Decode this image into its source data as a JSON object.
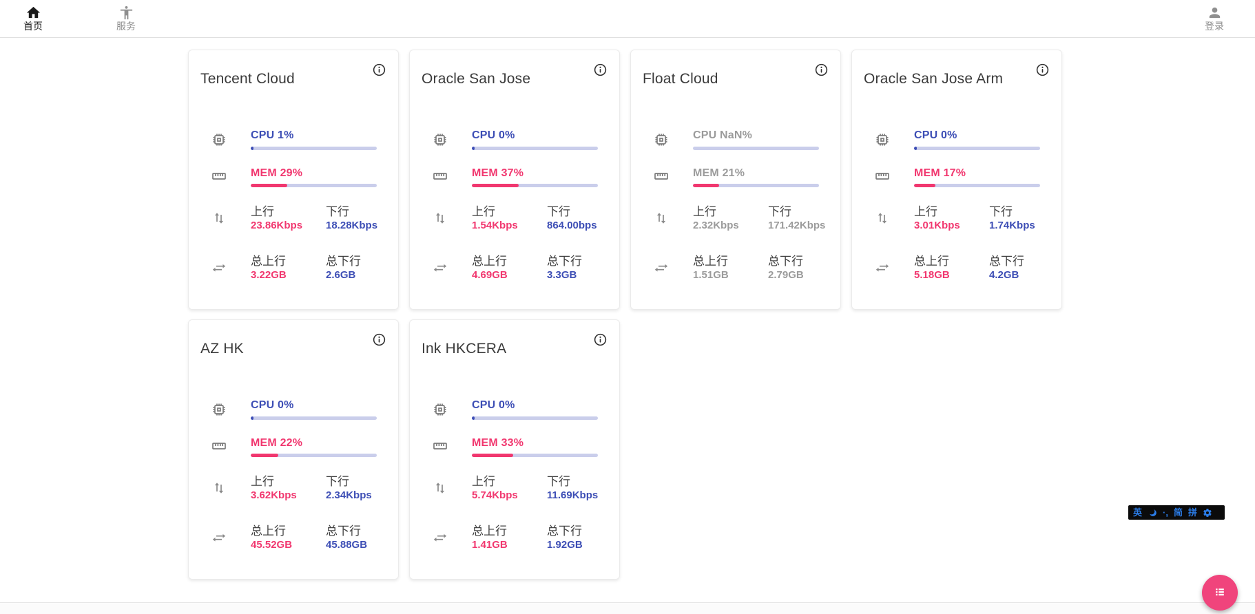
{
  "nav": {
    "home": {
      "label": "首页"
    },
    "services": {
      "label": "服务"
    },
    "login": {
      "label": "登录"
    }
  },
  "labels": {
    "up": "上行",
    "down": "下行",
    "total_up": "总上行",
    "total_down": "总下行"
  },
  "servers": [
    {
      "name": "Tencent Cloud",
      "cpu_label": "CPU 1%",
      "cpu_pct": 1,
      "mem_label": "MEM 29%",
      "mem_pct": 29,
      "up": "23.86Kbps",
      "down": "18.28Kbps",
      "total_up": "3.22GB",
      "total_down": "2.6GB",
      "stale": false
    },
    {
      "name": "Oracle San Jose",
      "cpu_label": "CPU 0%",
      "cpu_pct": 0,
      "mem_label": "MEM 37%",
      "mem_pct": 37,
      "up": "1.54Kbps",
      "down": "864.00bps",
      "total_up": "4.69GB",
      "total_down": "3.3GB",
      "stale": false
    },
    {
      "name": "Float Cloud",
      "cpu_label": "CPU NaN%",
      "cpu_pct": null,
      "mem_label": "MEM 21%",
      "mem_pct": 21,
      "up": "2.32Kbps",
      "down": "171.42Kbps",
      "total_up": "1.51GB",
      "total_down": "2.79GB",
      "stale": true
    },
    {
      "name": "Oracle San Jose Arm",
      "cpu_label": "CPU 0%",
      "cpu_pct": 0,
      "mem_label": "MEM 17%",
      "mem_pct": 17,
      "up": "3.01Kbps",
      "down": "1.74Kbps",
      "total_up": "5.18GB",
      "total_down": "4.2GB",
      "stale": false
    },
    {
      "name": "AZ HK",
      "cpu_label": "CPU 0%",
      "cpu_pct": 0,
      "mem_label": "MEM 22%",
      "mem_pct": 22,
      "up": "3.62Kbps",
      "down": "2.34Kbps",
      "total_up": "45.52GB",
      "total_down": "45.88GB",
      "stale": false
    },
    {
      "name": "Ink HKCERA",
      "cpu_label": "CPU 0%",
      "cpu_pct": 0,
      "mem_label": "MEM 33%",
      "mem_pct": 33,
      "up": "5.74Kbps",
      "down": "11.69Kbps",
      "total_up": "1.41GB",
      "total_down": "1.92GB",
      "stale": false
    }
  ],
  "ime": {
    "english": "英",
    "punct": "·,",
    "simplified": "简",
    "pinyin": "拼"
  },
  "colors": {
    "blue": "#3d4eb5",
    "pink": "#f1376f",
    "track": "#caceeb",
    "stale_gray": "#9b9b9b",
    "fab_pink": "#f0447c"
  }
}
